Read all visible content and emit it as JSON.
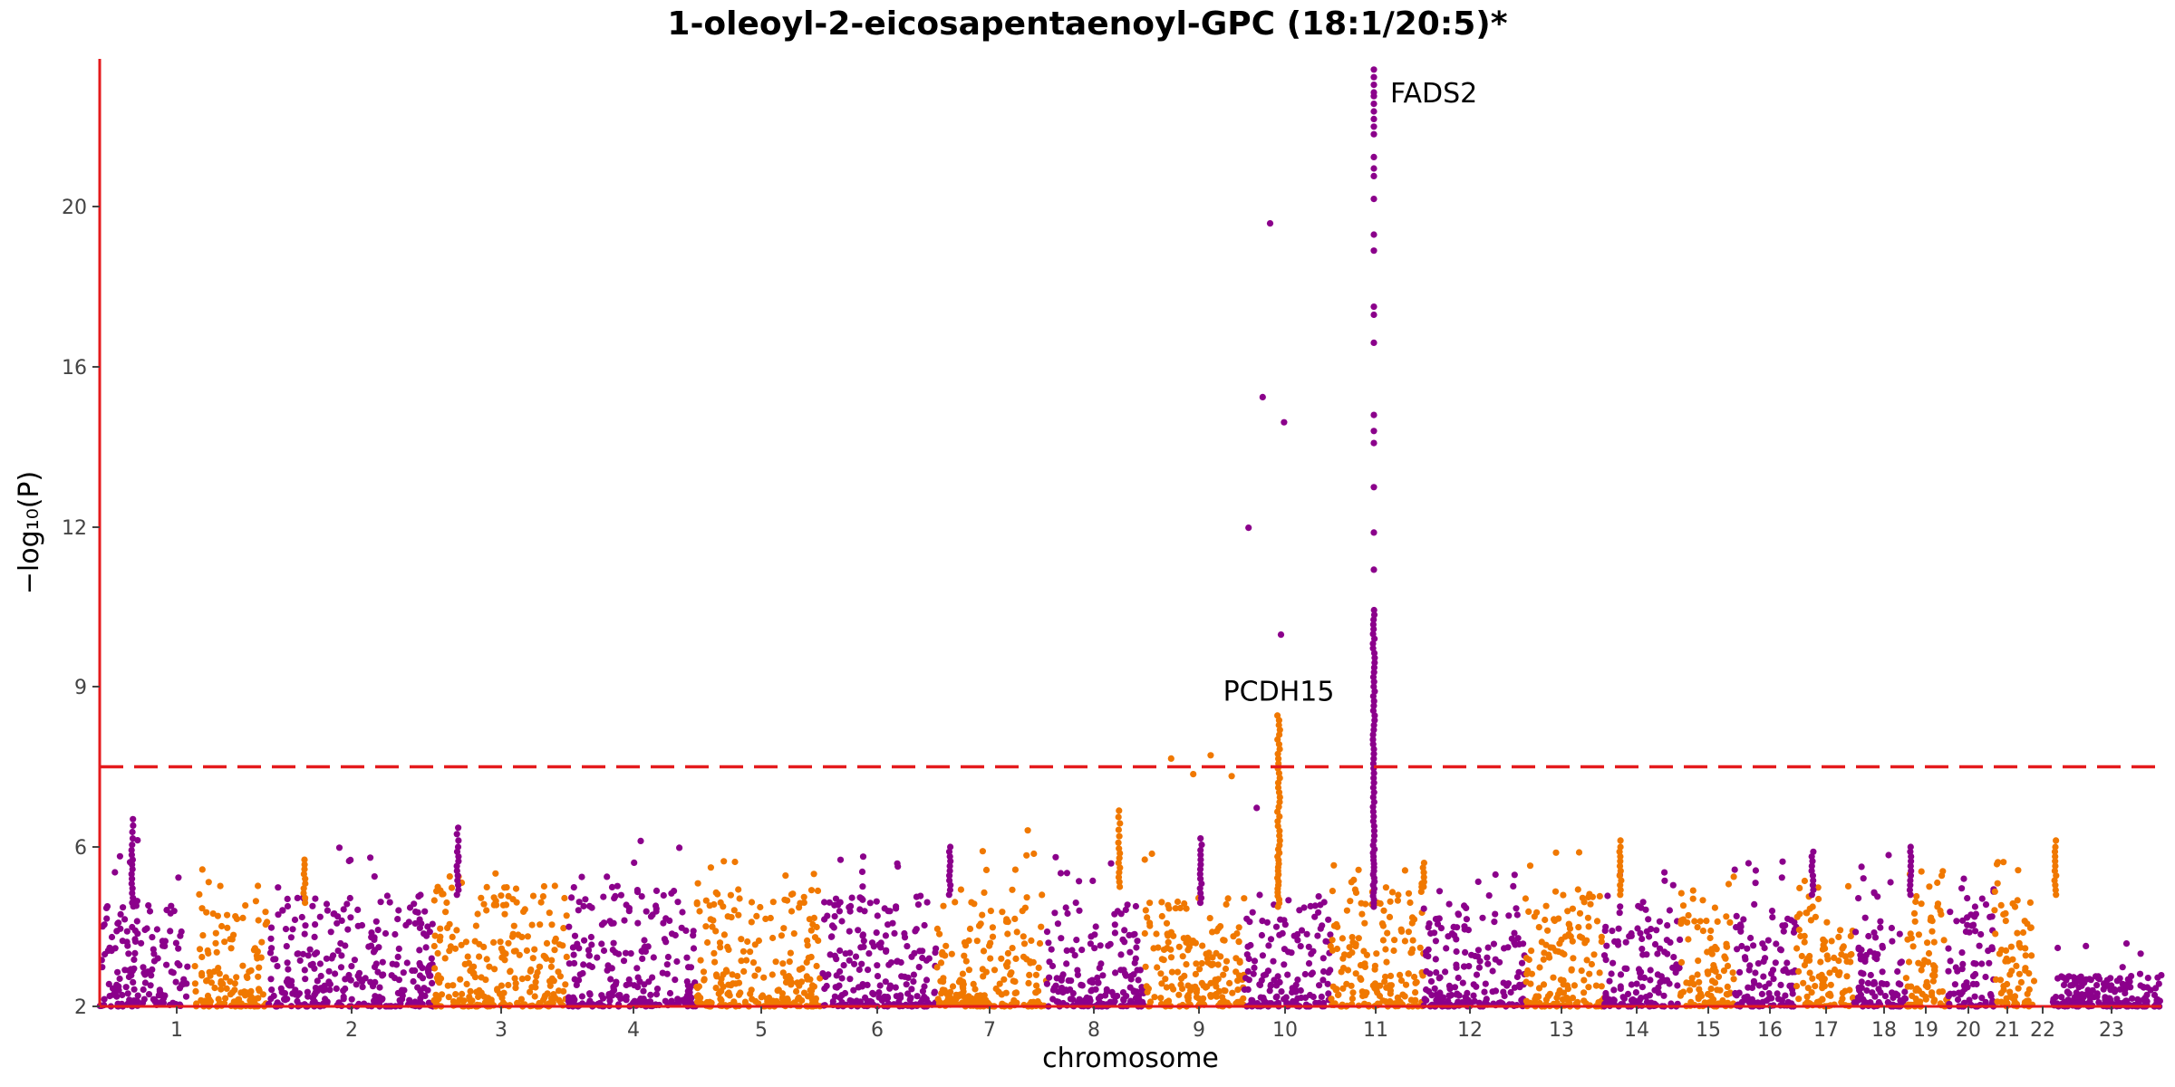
{
  "chart_data": {
    "type": "scatter",
    "title": "1-oleoyl-2-eicosapentaenoyl-GPC (18:1/20:5)*",
    "xlabel": "chromosome",
    "ylabel": "−log₁₀(P)",
    "y_ticks": [
      2,
      6,
      9,
      12,
      16,
      20
    ],
    "significance_threshold": 7.5,
    "colors": {
      "odd": "#8B008B",
      "even": "#F07800",
      "threshold": "#E41A1C",
      "axis": "#E41A1C"
    },
    "chromosomes": [
      {
        "label": "1",
        "baseline_max": 4.6,
        "peak": 6.6
      },
      {
        "label": "2",
        "baseline_max": 4.6,
        "peak": 5.8
      },
      {
        "label": "3",
        "baseline_max": 4.8,
        "peak": 6.4
      },
      {
        "label": "4",
        "baseline_max": 5.0,
        "peak": 5.5
      },
      {
        "label": "5",
        "baseline_max": 5.0,
        "peak": 6.4
      },
      {
        "label": "6",
        "baseline_max": 5.0,
        "peak": 5.9
      },
      {
        "label": "7",
        "baseline_max": 4.8,
        "peak": 6.1
      },
      {
        "label": "8",
        "baseline_max": 5.0,
        "peak": 6.7
      },
      {
        "label": "9",
        "baseline_max": 4.6,
        "peak": 6.2
      },
      {
        "label": "10",
        "baseline_max": 4.8,
        "peak": 8.5
      },
      {
        "label": "11",
        "baseline_max": 4.8,
        "peak": 23.6
      },
      {
        "label": "12",
        "baseline_max": 5.0,
        "peak": 5.7
      },
      {
        "label": "13",
        "baseline_max": 4.6,
        "peak": 5.6
      },
      {
        "label": "14",
        "baseline_max": 4.8,
        "peak": 6.2
      },
      {
        "label": "15",
        "baseline_max": 4.6,
        "peak": 5.6
      },
      {
        "label": "16",
        "baseline_max": 4.6,
        "peak": 5.5
      },
      {
        "label": "17",
        "baseline_max": 4.8,
        "peak": 6.0
      },
      {
        "label": "18",
        "baseline_max": 4.6,
        "peak": 5.3
      },
      {
        "label": "19",
        "baseline_max": 4.8,
        "peak": 6.1
      },
      {
        "label": "20",
        "baseline_max": 4.8,
        "peak": 5.6
      },
      {
        "label": "21",
        "baseline_max": 4.6,
        "peak": 5.4
      },
      {
        "label": "22",
        "baseline_max": 4.8,
        "peak": 6.2
      },
      {
        "label": "23",
        "baseline_max": 2.8,
        "peak": 4.0
      }
    ],
    "annotations": [
      {
        "text": "PCDH15",
        "chromosome": "10",
        "y": 8.5
      },
      {
        "text": "FADS2",
        "chromosome": "11",
        "y": 23.6
      }
    ]
  }
}
